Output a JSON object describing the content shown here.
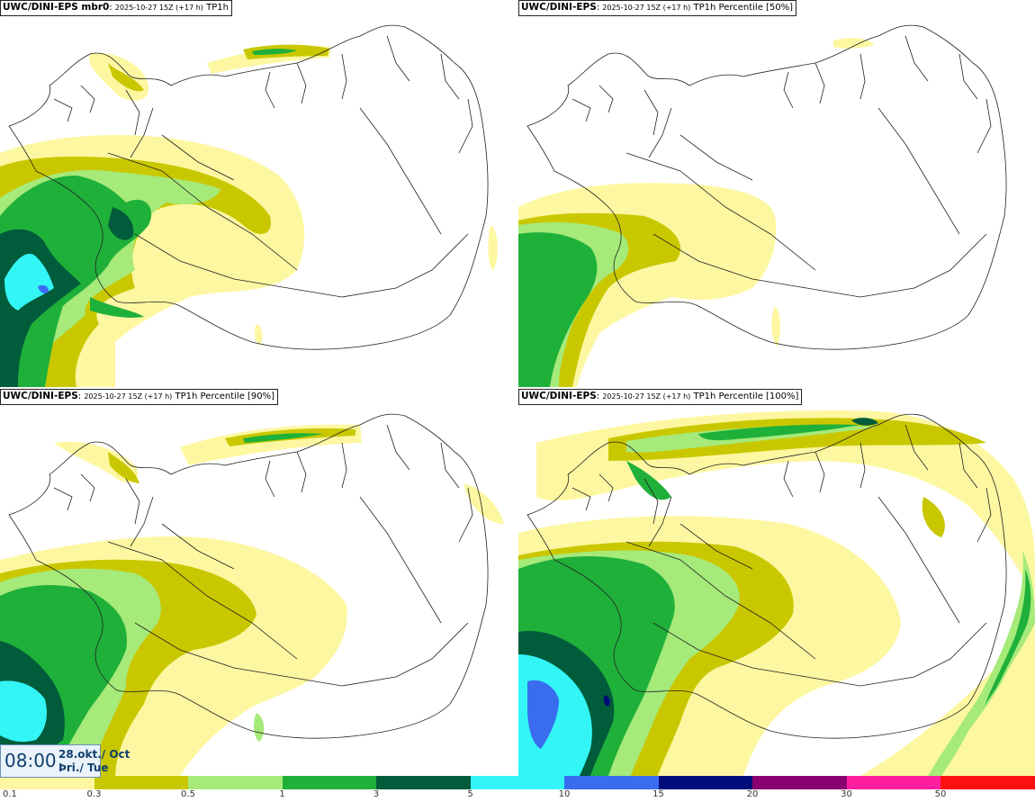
{
  "panels": [
    {
      "id": "tl",
      "model": "UWC/DINI-EPS mbr0",
      "sep": ":",
      "run": "2025-10-27 15Z (+17 h)",
      "field": "TP1h"
    },
    {
      "id": "tr",
      "model": "UWC/DINI-EPS",
      "sep": ":",
      "run": "2025-10-27 15Z (+17 h)",
      "field": "TP1h Percentile [50%]"
    },
    {
      "id": "bl",
      "model": "UWC/DINI-EPS",
      "sep": ":",
      "run": "2025-10-27 15Z (+17 h)",
      "field": "TP1h Percentile [90%]"
    },
    {
      "id": "br",
      "model": "UWC/DINI-EPS",
      "sep": ":",
      "run": "2025-10-27 15Z (+17 h)",
      "field": "TP1h Percentile [100%]"
    }
  ],
  "time": {
    "clock": "08:00",
    "date": "28.okt./ Oct",
    "day": "Þri./ Tue"
  },
  "colorbar": {
    "ticks": [
      "0.1",
      "0.3",
      "0.5",
      "1",
      "3",
      "5",
      "10",
      "15",
      "20",
      "30",
      "50"
    ],
    "colors": [
      "#fdf7a1",
      "#c9c800",
      "#a6ea7a",
      "#1fb03a",
      "#005c3a",
      "#33f5f5",
      "#3a6cf0",
      "#000c7a",
      "#8a0070",
      "#ff1ea0",
      "#ff1010"
    ]
  },
  "palette": {
    "c01": "#fdf7a1",
    "c03": "#c9c800",
    "c05": "#a6ea7a",
    "c1": "#1fb03a",
    "c3": "#005c3a",
    "c5": "#33f5f5",
    "c10": "#3a6cf0",
    "c15": "#000c7a",
    "coast": "#222222"
  }
}
